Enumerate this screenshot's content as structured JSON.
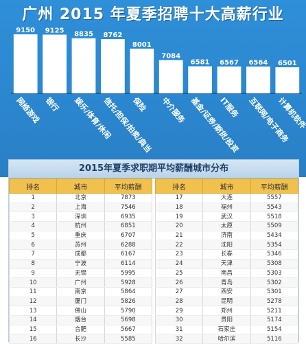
{
  "title": "广州 2015 年夏季招聘十大高薪行业",
  "chart_data": {
    "type": "bar",
    "categories": [
      "网络游戏",
      "银行",
      "娱乐/体育/休闲",
      "信托/担保/拍卖/典当",
      "保险",
      "中介服务",
      "基金/证券/期货/投资",
      "IT服务",
      "互联网/电子商务",
      "计算机软件"
    ],
    "values": [
      9150,
      9125,
      8835,
      8762,
      8001,
      7084,
      6581,
      6567,
      6564,
      6501
    ],
    "ylim": [
      0,
      9500
    ],
    "grid": false,
    "legend": "none",
    "title": "广州 2015 年夏季招聘十大高薪行业"
  },
  "table": {
    "title": "2015年夏季求职期平均薪酬城市分布",
    "headers": [
      "排名",
      "城市",
      "平均薪酬",
      "排名",
      "城市",
      "平均薪酬"
    ],
    "left_rows": [
      [
        "1",
        "北京",
        "7873"
      ],
      [
        "2",
        "上海",
        "7546"
      ],
      [
        "3",
        "深圳",
        "6935"
      ],
      [
        "4",
        "杭州",
        "6851"
      ],
      [
        "5",
        "重庆",
        "6707"
      ],
      [
        "6",
        "苏州",
        "6288"
      ],
      [
        "7",
        "成都",
        "6167"
      ],
      [
        "8",
        "宁波",
        "6114"
      ],
      [
        "9",
        "无锡",
        "5995"
      ],
      [
        "10",
        "广州",
        "5928"
      ],
      [
        "11",
        "南京",
        "5864"
      ],
      [
        "12",
        "厦门",
        "5826"
      ],
      [
        "13",
        "佛山",
        "5790"
      ],
      [
        "14",
        "烟台",
        "5698"
      ],
      [
        "15",
        "合肥",
        "5667"
      ],
      [
        "16",
        "长沙",
        "5585"
      ]
    ],
    "right_rows": [
      [
        "17",
        "大连",
        "5557"
      ],
      [
        "18",
        "福州",
        "5543"
      ],
      [
        "19",
        "武汉",
        "5518"
      ],
      [
        "20",
        "太原",
        "5509"
      ],
      [
        "21",
        "济南",
        "5434"
      ],
      [
        "22",
        "沈阳",
        "5354"
      ],
      [
        "23",
        "长春",
        "5346"
      ],
      [
        "24",
        "天津",
        "5308"
      ],
      [
        "25",
        "南昌",
        "5303"
      ],
      [
        "26",
        "青岛",
        "5302"
      ],
      [
        "27",
        "西安",
        "5301"
      ],
      [
        "28",
        "昆明",
        "5278"
      ],
      [
        "29",
        "郑州",
        "5211"
      ],
      [
        "30",
        "贵阳",
        "5174"
      ],
      [
        "31",
        "石家庄",
        "5154"
      ],
      [
        "32",
        "哈尔滨",
        "5116"
      ]
    ]
  },
  "colors": {
    "banner": "#2b86cf",
    "bar": "#ffffff",
    "header": "#f2c14d"
  }
}
